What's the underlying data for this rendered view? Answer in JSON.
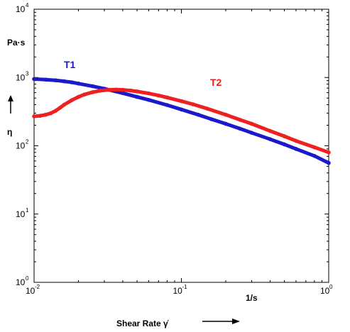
{
  "chart_data": {
    "type": "line",
    "x_scale": "log",
    "y_scale": "log",
    "xlim": [
      0.01,
      1
    ],
    "ylim": [
      1,
      10000
    ],
    "grid": false,
    "xlabel": "Shear Rate γ̇",
    "xunit": "1/s",
    "ylabel": "η",
    "yunit": "Pa·s",
    "x_ticks": [
      {
        "base": "10",
        "exp": "-2",
        "value": 0.01
      },
      {
        "base": "10",
        "exp": "-1",
        "value": 0.1
      },
      {
        "base": "10",
        "exp": "0",
        "value": 1
      }
    ],
    "y_ticks": [
      {
        "base": "10",
        "exp": "0",
        "value": 1
      },
      {
        "base": "10",
        "exp": "1",
        "value": 10
      },
      {
        "base": "10",
        "exp": "2",
        "value": 100
      },
      {
        "base": "10",
        "exp": "3",
        "value": 1000
      },
      {
        "base": "10",
        "exp": "4",
        "value": 10000
      }
    ],
    "series": [
      {
        "name": "T1",
        "color": "#1a1acc",
        "x": [
          0.01,
          0.012,
          0.014,
          0.016,
          0.018,
          0.02,
          0.025,
          0.03,
          0.04,
          0.05,
          0.06,
          0.08,
          0.1,
          0.13,
          0.16,
          0.2,
          0.25,
          0.3,
          0.4,
          0.5,
          0.6,
          0.8,
          1.0
        ],
        "y": [
          950,
          930,
          910,
          880,
          850,
          815,
          745,
          685,
          590,
          520,
          470,
          395,
          340,
          285,
          245,
          210,
          178,
          155,
          125,
          105,
          90,
          71,
          56
        ]
      },
      {
        "name": "T2",
        "color": "#ee2020",
        "x": [
          0.01,
          0.011,
          0.012,
          0.013,
          0.014,
          0.015,
          0.016,
          0.018,
          0.02,
          0.022,
          0.025,
          0.028,
          0.032,
          0.036,
          0.04,
          0.045,
          0.05,
          0.06,
          0.07,
          0.08,
          0.1,
          0.12,
          0.15,
          0.2,
          0.25,
          0.3,
          0.4,
          0.5,
          0.6,
          0.8,
          1.0
        ],
        "y": [
          270,
          275,
          285,
          300,
          325,
          360,
          400,
          465,
          520,
          565,
          610,
          640,
          660,
          665,
          660,
          645,
          625,
          585,
          545,
          510,
          450,
          405,
          350,
          285,
          240,
          210,
          165,
          138,
          118,
          95,
          80
        ]
      }
    ]
  }
}
